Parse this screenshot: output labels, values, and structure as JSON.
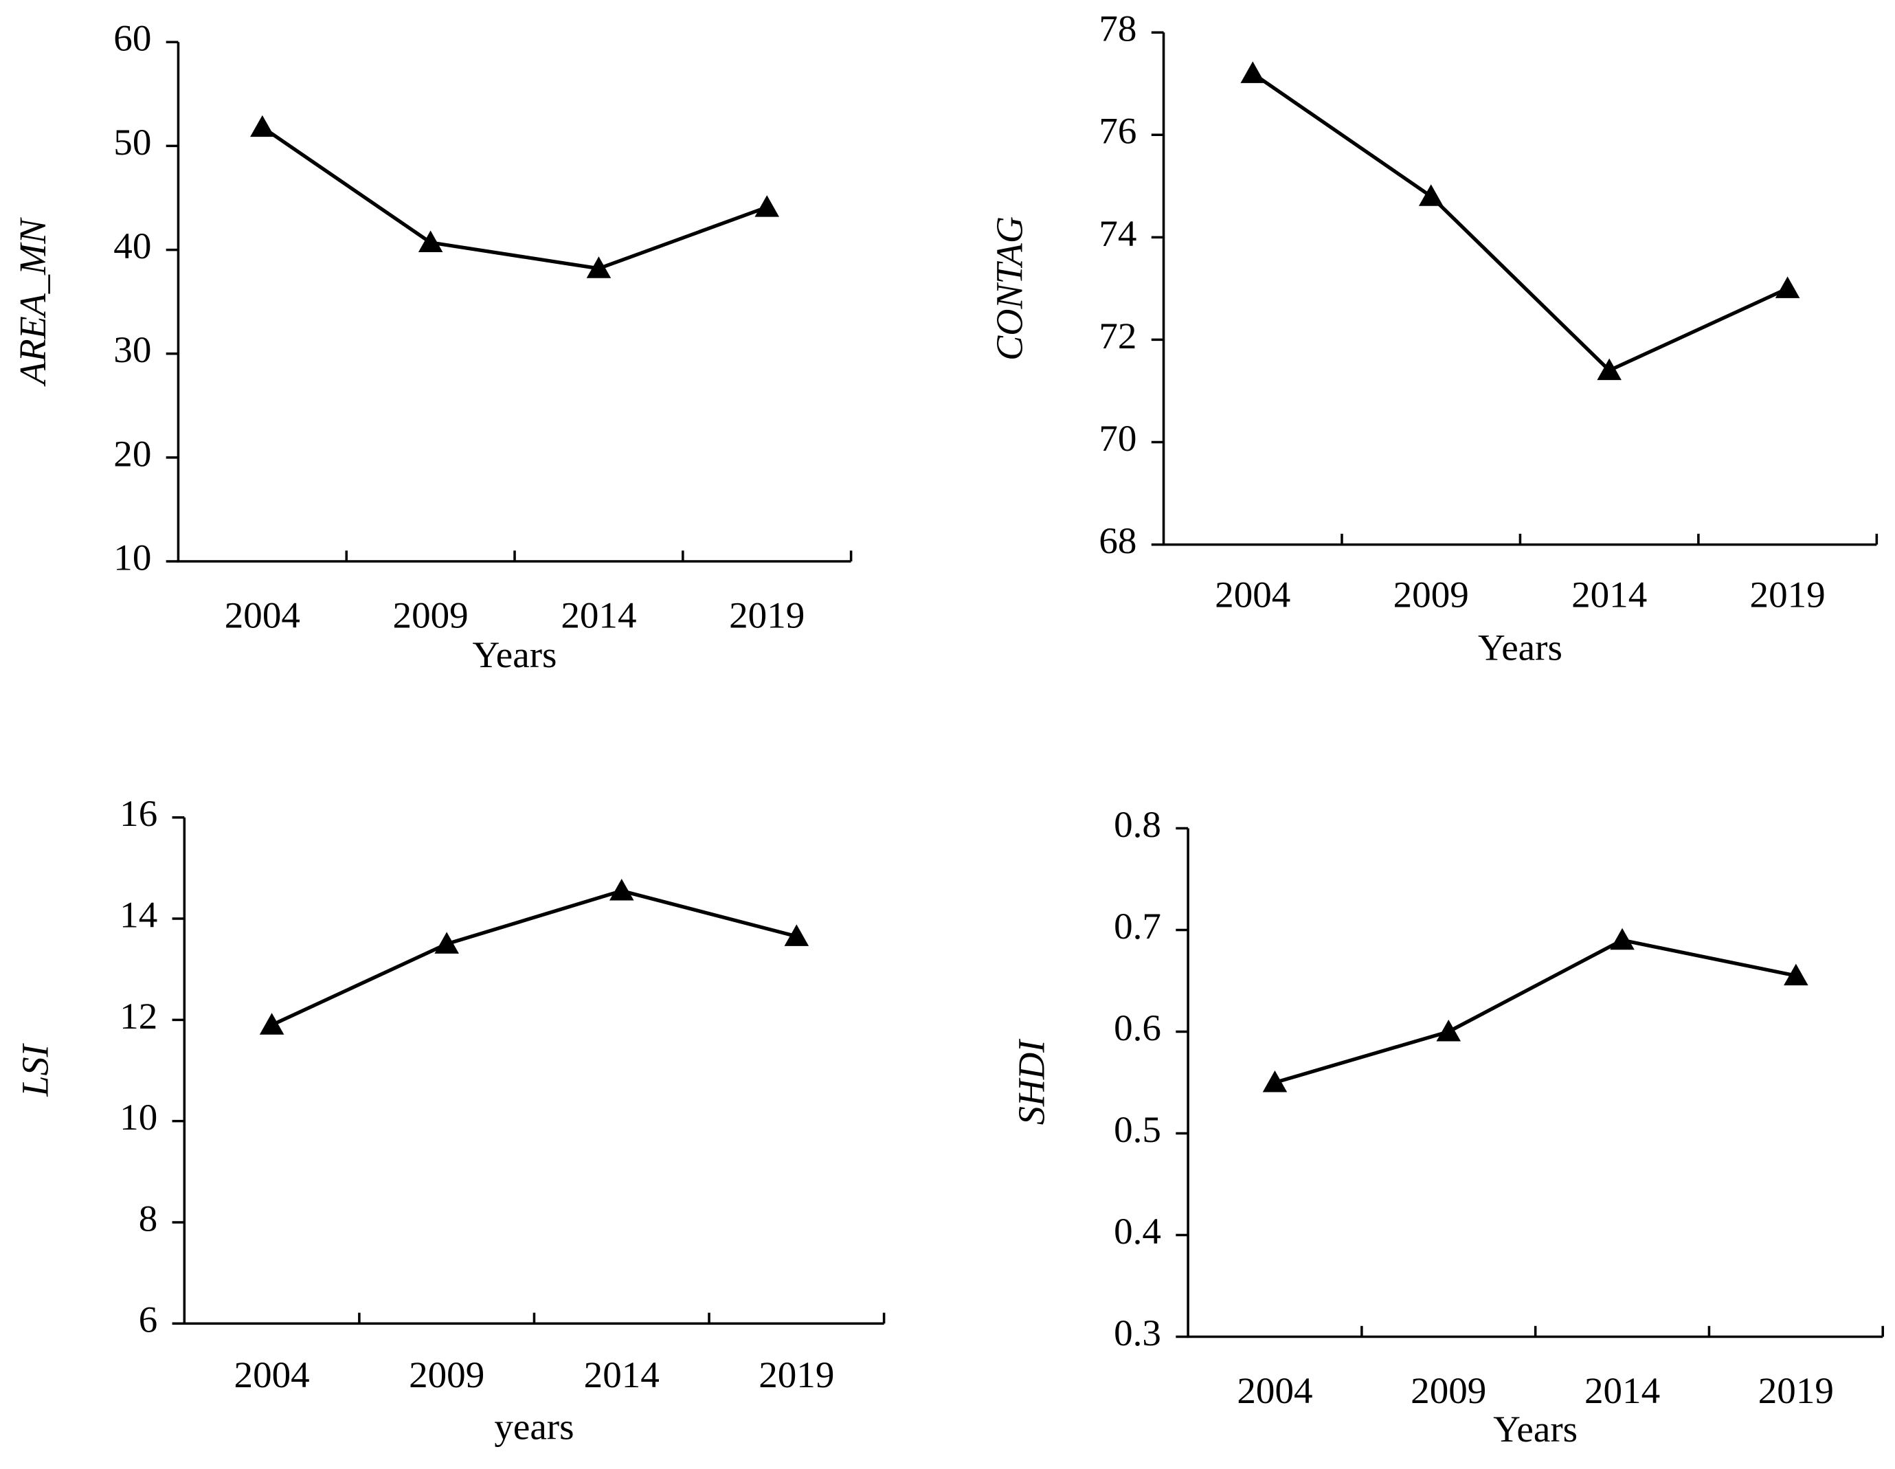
{
  "chart_data": [
    {
      "type": "line",
      "categories": [
        "2004",
        "2009",
        "2014",
        "2019"
      ],
      "values": [
        51.8,
        40.7,
        38.2,
        44.1
      ],
      "color": "#000000",
      "x_label": "Years",
      "y_label": "AREA_MN",
      "ylim": [
        10,
        60
      ],
      "yticks": [
        10,
        20,
        30,
        40,
        50,
        60
      ]
    },
    {
      "type": "line",
      "categories": [
        "2004",
        "2009",
        "2014",
        "2019"
      ],
      "values": [
        77.2,
        74.8,
        71.4,
        73.0
      ],
      "color": "#000000",
      "x_label": "Years",
      "y_label": "CONTAG",
      "ylim": [
        68,
        78
      ],
      "yticks": [
        68,
        70,
        72,
        74,
        76,
        78
      ]
    },
    {
      "type": "line",
      "categories": [
        "2004",
        "2009",
        "2014",
        "2019"
      ],
      "values": [
        11.9,
        13.5,
        14.55,
        13.65
      ],
      "color": "#000000",
      "x_label": "years",
      "y_label": "LSI",
      "ylim": [
        6,
        16
      ],
      "yticks": [
        6,
        8,
        10,
        12,
        14,
        16
      ]
    },
    {
      "type": "line",
      "categories": [
        "2004",
        "2009",
        "2014",
        "2019"
      ],
      "values": [
        0.55,
        0.6,
        0.69,
        0.655
      ],
      "color": "#000000",
      "x_label": "Years",
      "y_label": "SHDI",
      "ylim": [
        0.3,
        0.8
      ],
      "yticks": [
        0.3,
        0.4,
        0.5,
        0.6,
        0.7,
        0.8
      ]
    }
  ]
}
